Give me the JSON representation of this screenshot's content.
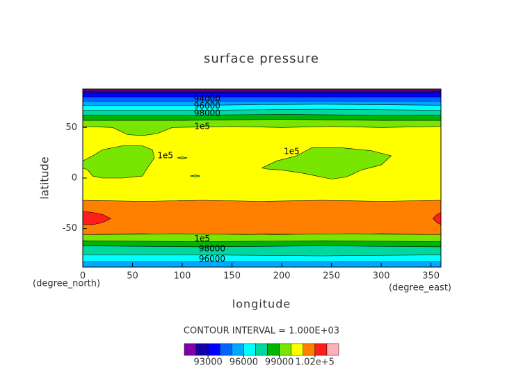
{
  "chart_data": {
    "type": "contour",
    "title": "surface pressure",
    "xlabel": "longitude",
    "ylabel": "latitude",
    "x_unit": "(degree_north)",
    "y_unit": "(degree_east)",
    "note": "CONTOUR INTERVAL = 1.000E+03",
    "xlim": [
      0,
      360
    ],
    "xticks": [
      0,
      50,
      100,
      150,
      200,
      250,
      300,
      350
    ],
    "ylim": [
      -88,
      88
    ],
    "yticks": [
      -50,
      0,
      50
    ],
    "colorbar": {
      "levels": [
        91000,
        92000,
        93000,
        94000,
        95000,
        96000,
        97000,
        98000,
        99000,
        100000,
        101000,
        102000,
        103000,
        104000
      ],
      "colors": [
        "#8000a8",
        "#1400a8",
        "#0000ff",
        "#0064ff",
        "#00a8ff",
        "#00ffff",
        "#00d8a0",
        "#00b400",
        "#78e600",
        "#ffff00",
        "#ff8000",
        "#ff1e1e",
        "#ffb0b8"
      ],
      "ticks": [
        93000,
        96000,
        99000,
        {
          "value": 102000,
          "label": "1.02e+5"
        }
      ]
    },
    "regions": [
      {
        "level": 100000,
        "lon": [
          0,
          360,
          360,
          0
        ],
        "lat": [
          -88,
          -88,
          88,
          88
        ]
      },
      {
        "level": 99000,
        "lon": [
          0,
          30,
          45,
          60,
          75,
          90,
          150,
          200,
          250,
          300,
          360,
          360,
          0
        ],
        "lat": [
          51,
          50,
          43,
          42,
          44,
          50,
          51,
          50,
          51,
          50,
          51,
          88,
          88
        ]
      },
      {
        "level": 98000,
        "lon": [
          0,
          100,
          200,
          300,
          360,
          360,
          0
        ],
        "lat": [
          57,
          57,
          58,
          57,
          57,
          88,
          88
        ]
      },
      {
        "level": 97000,
        "lon": [
          0,
          100,
          200,
          300,
          360,
          360,
          0
        ],
        "lat": [
          62,
          62,
          63,
          62,
          62,
          88,
          88
        ]
      },
      {
        "level": 96000,
        "lon": [
          0,
          120,
          240,
          360,
          360,
          0
        ],
        "lat": [
          67,
          67,
          68,
          67,
          88,
          88
        ]
      },
      {
        "level": 95000,
        "lon": [
          0,
          120,
          240,
          360,
          360,
          0
        ],
        "lat": [
          72,
          72,
          73,
          72,
          88,
          88
        ]
      },
      {
        "level": 94000,
        "lon": [
          0,
          360,
          360,
          0
        ],
        "lat": [
          76,
          76,
          88,
          88
        ]
      },
      {
        "level": 93000,
        "lon": [
          0,
          360,
          360,
          0
        ],
        "lat": [
          80,
          80,
          88,
          88
        ]
      },
      {
        "level": 92000,
        "lon": [
          0,
          360,
          360,
          0
        ],
        "lat": [
          84,
          84,
          88,
          88
        ]
      },
      {
        "level": 91000,
        "lon": [
          0,
          360,
          360,
          0
        ],
        "lat": [
          86,
          86,
          88,
          88
        ]
      },
      {
        "level": 101000,
        "lon": [
          0,
          60,
          120,
          180,
          240,
          300,
          360,
          360,
          300,
          240,
          180,
          120,
          60,
          0
        ],
        "lat": [
          -22,
          -23,
          -22,
          -23,
          -22,
          -23,
          -22,
          -56,
          -55,
          -56,
          -55,
          -56,
          -55,
          -56
        ]
      },
      {
        "level": 102000,
        "lon": [
          0,
          10,
          20,
          28,
          20,
          10,
          0
        ],
        "lat": [
          -33,
          -34,
          -36,
          -40,
          -44,
          -46,
          -46
        ]
      },
      {
        "level": 102000,
        "lon": [
          360,
          356,
          352,
          356,
          360
        ],
        "lat": [
          -34,
          -36,
          -40,
          -44,
          -46
        ]
      },
      {
        "level": 99000,
        "lon": [
          0,
          90,
          180,
          270,
          360,
          360,
          0
        ],
        "lat": [
          -56,
          -55,
          -56,
          -55,
          -56,
          -88,
          -88
        ]
      },
      {
        "level": 98000,
        "lon": [
          0,
          120,
          240,
          360,
          360,
          0
        ],
        "lat": [
          -62,
          -63,
          -62,
          -63,
          -88,
          -88
        ]
      },
      {
        "level": 97000,
        "lon": [
          0,
          120,
          240,
          360,
          360,
          0
        ],
        "lat": [
          -67,
          -68,
          -67,
          -68,
          -88,
          -88
        ]
      },
      {
        "level": 96000,
        "lon": [
          0,
          120,
          240,
          360,
          360,
          0
        ],
        "lat": [
          -76,
          -76,
          -77,
          -76,
          -88,
          -88
        ]
      },
      {
        "level": 95000,
        "lon": [
          0,
          360,
          360,
          0
        ],
        "lat": [
          -83,
          -83,
          -88,
          -88
        ]
      },
      {
        "level": 99000,
        "lon": [
          0,
          10,
          20,
          40,
          60,
          70,
          72,
          65,
          60,
          40,
          20,
          10,
          5,
          0
        ],
        "lat": [
          17,
          22,
          28,
          32,
          32,
          28,
          20,
          10,
          2,
          0,
          0,
          2,
          8,
          10
        ]
      },
      {
        "level": 99000,
        "lon": [
          180,
          195,
          215,
          230,
          260,
          290,
          310,
          300,
          280,
          265,
          250,
          235,
          220,
          200,
          185,
          180
        ],
        "lat": [
          10,
          17,
          22,
          30,
          30,
          27,
          22,
          13,
          8,
          1,
          -1,
          2,
          5,
          8,
          9,
          10
        ]
      },
      {
        "level": 99000,
        "lon": [
          95,
          100,
          105,
          100
        ],
        "lat": [
          20,
          21,
          20,
          19
        ]
      },
      {
        "level": 99000,
        "lon": [
          108,
          113,
          118,
          113
        ],
        "lat": [
          2,
          3,
          2,
          1
        ]
      }
    ],
    "contour_labels": [
      {
        "value": 94000,
        "label": "94000",
        "lon": 125,
        "lat": 78
      },
      {
        "value": 96000,
        "label": "96000",
        "lon": 125,
        "lat": 71
      },
      {
        "value": 98000,
        "label": "98000",
        "lon": 125,
        "lat": 64
      },
      {
        "value": 100000,
        "label": "1e5",
        "lon": 120,
        "lat": 51
      },
      {
        "value": 100000,
        "label": "1e5",
        "lon": 83,
        "lat": 22
      },
      {
        "value": 100000,
        "label": "1e5",
        "lon": 210,
        "lat": 26
      },
      {
        "value": 100000,
        "label": "1e5",
        "lon": 120,
        "lat": -60
      },
      {
        "value": 98000,
        "label": "98000",
        "lon": 130,
        "lat": -70
      },
      {
        "value": 96000,
        "label": "96000",
        "lon": 130,
        "lat": -80
      }
    ]
  }
}
